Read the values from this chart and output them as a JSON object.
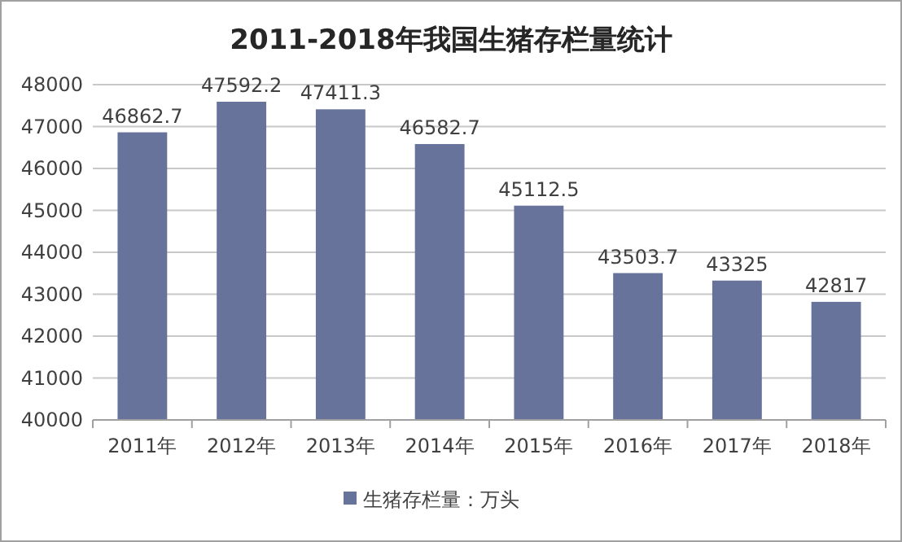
{
  "chart_data": {
    "type": "bar",
    "title": "2011-2018年我国生猪存栏量统计",
    "categories": [
      "2011年",
      "2012年",
      "2013年",
      "2014年",
      "2015年",
      "2016年",
      "2017年",
      "2018年"
    ],
    "series": [
      {
        "name": "生猪存栏量：万头",
        "color": "#68739c",
        "values": [
          46862.7,
          47592.2,
          47411.3,
          46582.7,
          45112.5,
          43503.7,
          43325,
          42817
        ]
      }
    ],
    "ylim": [
      40000,
      48000
    ],
    "yticks": [
      40000,
      41000,
      42000,
      43000,
      44000,
      45000,
      46000,
      47000,
      48000
    ],
    "grid": "y",
    "legend": "bottom",
    "data_labels": true
  }
}
